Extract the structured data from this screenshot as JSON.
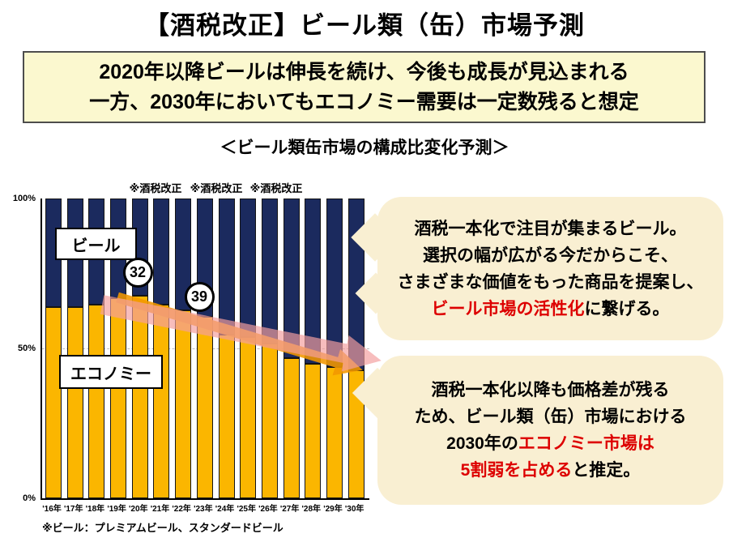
{
  "page": {
    "title": "【酒税改正】ビール類（缶）市場予測",
    "headline_line1": "2020年以降ビールは伸長を続け、今後も成長が見込まれる",
    "headline_line2": "一方、2030年においてもエコノミー需要は一定数残ると想定",
    "subtitle": "＜ビール類缶市場の構成比変化予測＞",
    "footnote": "※ビール：プレミアムビール、スタンダードビール"
  },
  "chart_data": {
    "type": "bar",
    "variant": "100%-stacked-column",
    "title": "＜ビール類缶市場の構成比変化予測＞",
    "categories": [
      "'16年",
      "'17年",
      "'18年",
      "'19年",
      "'20年",
      "'21年",
      "'22年",
      "'23年",
      "'24年",
      "'25年",
      "'26年",
      "'27年",
      "'28年",
      "'29年",
      "'30年"
    ],
    "series": [
      {
        "name": "ビール",
        "color": "#1b2a5e",
        "values": [
          36,
          36,
          35,
          33,
          32,
          35,
          37,
          39,
          45,
          46,
          48,
          53,
          55,
          56,
          57
        ]
      },
      {
        "name": "エコノミー",
        "color": "#fbb600",
        "values": [
          64,
          64,
          65,
          67,
          68,
          65,
          63,
          61,
          55,
          54,
          52,
          47,
          45,
          44,
          43
        ]
      }
    ],
    "y_ticks": [
      "100%",
      "50%",
      "0%"
    ],
    "ylim": [
      0,
      100
    ],
    "grid": "dashed line at 50%",
    "legend_position": "labels boxed inside plot",
    "tax_reform_labels": [
      "※酒税改正",
      "※酒税改正",
      "※酒税改正"
    ],
    "value_callouts": [
      {
        "value": "32",
        "meaning": "ビール構成比",
        "year": "'20年"
      },
      {
        "value": "39",
        "meaning": "ビール構成比",
        "year": "'23年"
      }
    ],
    "arrow_colors": {
      "orange": "#f39800",
      "pink": "#f49f9f"
    }
  },
  "bubbles": [
    {
      "lines": [
        [
          {
            "t": "酒税一本化で注目が集まるビール。",
            "c": "black"
          }
        ],
        [
          {
            "t": "選択の幅が広がる今だからこそ、",
            "c": "black"
          }
        ],
        [
          {
            "t": "さまざまな価値をもった商品を提案し、",
            "c": "black"
          }
        ],
        [
          {
            "t": "ビール市場の活性化",
            "c": "red"
          },
          {
            "t": "に繋げる。",
            "c": "black"
          }
        ]
      ]
    },
    {
      "lines": [
        [
          {
            "t": "酒税一本化以降も価格差が残る",
            "c": "black"
          }
        ],
        [
          {
            "t": "ため、ビール類（缶）市場における",
            "c": "black"
          }
        ],
        [
          {
            "t": "2030年の",
            "c": "black"
          },
          {
            "t": "エコノミー市場は",
            "c": "red"
          }
        ],
        [
          {
            "t": "5割弱を占める",
            "c": "red"
          },
          {
            "t": "と推定。",
            "c": "black"
          }
        ]
      ]
    }
  ],
  "colors": {
    "beer_navy": "#1b2a5e",
    "economy_yellow": "#fbb600",
    "orange_arrow": "#f39800",
    "pink_arrow": "#f49f9f",
    "red_text": "#dd0000",
    "headline_bg": "#fbf8cf",
    "bubble_bg": "#f9efd2"
  }
}
